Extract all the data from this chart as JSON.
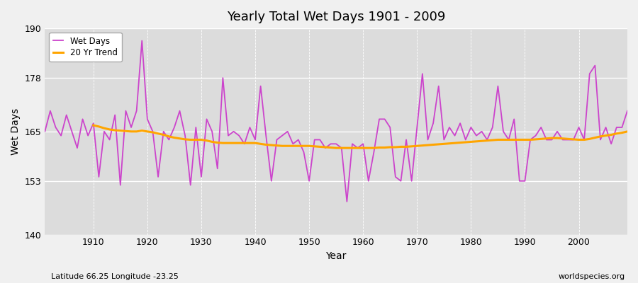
{
  "title": "Yearly Total Wet Days 1901 - 2009",
  "xlabel": "Year",
  "ylabel": "Wet Days",
  "subtitle": "Latitude 66.25 Longitude -23.25",
  "watermark": "worldspecies.org",
  "ylim": [
    140,
    190
  ],
  "xlim": [
    1901,
    2009
  ],
  "yticks": [
    140,
    153,
    165,
    178,
    190
  ],
  "xticks": [
    1910,
    1920,
    1930,
    1940,
    1950,
    1960,
    1970,
    1980,
    1990,
    2000
  ],
  "wet_days_color": "#CC44CC",
  "trend_color": "#FFA500",
  "fig_bg_color": "#F0F0F0",
  "plot_bg_color": "#DCDCDC",
  "wet_days_years": [
    1901,
    1902,
    1903,
    1904,
    1905,
    1906,
    1907,
    1908,
    1909,
    1910,
    1911,
    1912,
    1913,
    1914,
    1915,
    1916,
    1917,
    1918,
    1919,
    1920,
    1921,
    1922,
    1923,
    1924,
    1925,
    1926,
    1927,
    1928,
    1929,
    1930,
    1931,
    1932,
    1933,
    1934,
    1935,
    1936,
    1937,
    1938,
    1939,
    1940,
    1941,
    1942,
    1943,
    1944,
    1945,
    1946,
    1947,
    1948,
    1949,
    1950,
    1951,
    1952,
    1953,
    1954,
    1955,
    1956,
    1957,
    1958,
    1959,
    1960,
    1961,
    1962,
    1963,
    1964,
    1965,
    1966,
    1967,
    1968,
    1969,
    1970,
    1971,
    1972,
    1973,
    1974,
    1975,
    1976,
    1977,
    1978,
    1979,
    1980,
    1981,
    1982,
    1983,
    1984,
    1985,
    1986,
    1987,
    1988,
    1989,
    1990,
    1991,
    1992,
    1993,
    1994,
    1995,
    1996,
    1997,
    1998,
    1999,
    2000,
    2001,
    2002,
    2003,
    2004,
    2005,
    2006,
    2007,
    2008,
    2009
  ],
  "wet_days_values": [
    165,
    170,
    166,
    164,
    169,
    165,
    161,
    168,
    164,
    167,
    154,
    165,
    163,
    169,
    152,
    170,
    166,
    170,
    187,
    168,
    165,
    154,
    165,
    163,
    166,
    170,
    164,
    152,
    166,
    154,
    168,
    165,
    156,
    178,
    164,
    165,
    164,
    162,
    166,
    163,
    176,
    164,
    153,
    163,
    164,
    165,
    162,
    163,
    160,
    153,
    163,
    163,
    161,
    162,
    162,
    161,
    148,
    162,
    161,
    162,
    153,
    160,
    168,
    168,
    166,
    154,
    153,
    163,
    153,
    166,
    179,
    163,
    167,
    176,
    163,
    166,
    164,
    167,
    163,
    166,
    164,
    165,
    163,
    166,
    176,
    165,
    163,
    168,
    153,
    153,
    163,
    164,
    166,
    163,
    163,
    165,
    163,
    163,
    163,
    166,
    163,
    179,
    181,
    163,
    166,
    162,
    166,
    166,
    170
  ],
  "trend_years": [
    1910,
    1911,
    1912,
    1913,
    1914,
    1915,
    1916,
    1917,
    1918,
    1919,
    1920,
    1921,
    1922,
    1923,
    1924,
    1925,
    1926,
    1927,
    1928,
    1929,
    1930,
    1931,
    1932,
    1933,
    1934,
    1935,
    1936,
    1937,
    1938,
    1939,
    1940,
    1941,
    1942,
    1943,
    1944,
    1945,
    1946,
    1947,
    1948,
    1949,
    1950,
    1951,
    1952,
    1953,
    1954,
    1955,
    1956,
    1957,
    1958,
    1959,
    1960,
    1961,
    1962,
    1963,
    1964,
    1965,
    1966,
    1967,
    1968,
    1969,
    1970,
    1971,
    1972,
    1973,
    1974,
    1975,
    1976,
    1977,
    1978,
    1979,
    1980,
    1981,
    1982,
    1983,
    1984,
    1985,
    1986,
    1987,
    1988,
    1989,
    1990,
    1991,
    1992,
    1993,
    1994,
    1995,
    1996,
    1997,
    1998,
    1999,
    2000,
    2001,
    2002,
    2003,
    2004,
    2005,
    2006,
    2007,
    2008,
    2009
  ],
  "trend_values": [
    166.5,
    166.2,
    165.8,
    165.5,
    165.3,
    165.2,
    165.1,
    165.0,
    165.0,
    165.2,
    165.0,
    164.8,
    164.5,
    164.2,
    163.8,
    163.5,
    163.3,
    163.1,
    163.0,
    163.0,
    163.0,
    162.8,
    162.5,
    162.3,
    162.2,
    162.2,
    162.2,
    162.2,
    162.2,
    162.2,
    162.2,
    162.0,
    161.8,
    161.7,
    161.6,
    161.5,
    161.5,
    161.5,
    161.5,
    161.5,
    161.5,
    161.4,
    161.3,
    161.2,
    161.1,
    161.0,
    161.0,
    161.0,
    161.0,
    161.0,
    161.0,
    161.0,
    161.0,
    161.1,
    161.1,
    161.2,
    161.2,
    161.3,
    161.3,
    161.4,
    161.5,
    161.6,
    161.7,
    161.8,
    161.9,
    162.0,
    162.1,
    162.2,
    162.3,
    162.4,
    162.5,
    162.6,
    162.7,
    162.8,
    162.9,
    163.0,
    163.0,
    163.0,
    163.0,
    163.0,
    163.0,
    163.0,
    163.1,
    163.2,
    163.3,
    163.4,
    163.4,
    163.3,
    163.2,
    163.1,
    163.0,
    163.0,
    163.2,
    163.5,
    163.8,
    164.0,
    164.2,
    164.5,
    164.7,
    165.0
  ]
}
